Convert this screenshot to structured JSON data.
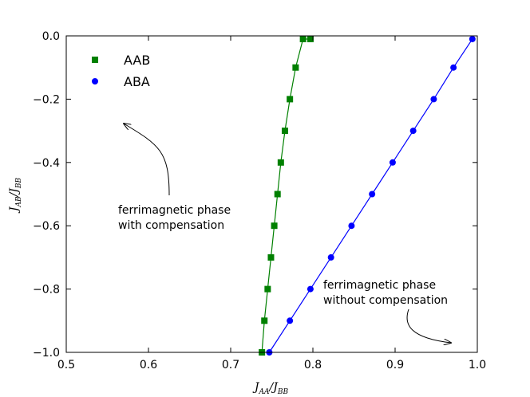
{
  "chart_data": {
    "type": "line",
    "xlabel": {
      "base": "J",
      "sub": "AA",
      "sep": "/",
      "base2": "J",
      "sub2": "BB"
    },
    "ylabel": {
      "base": "J",
      "sub": "AB",
      "sep": "/",
      "base2": "J",
      "sub2": "BB"
    },
    "xlim": [
      0.5,
      1.0
    ],
    "ylim": [
      -1.0,
      0.0
    ],
    "xticks": [
      0.5,
      0.6,
      0.7,
      0.8,
      0.9,
      1.0
    ],
    "xtick_labels": [
      "0.5",
      "0.6",
      "0.7",
      "0.8",
      "0.9",
      "1.0"
    ],
    "yticks": [
      0.0,
      -0.2,
      -0.4,
      -0.6,
      -0.8,
      -1.0
    ],
    "ytick_labels": [
      "0.0",
      "−0.2",
      "−0.4",
      "−0.6",
      "−0.8",
      "−1.0"
    ],
    "grid": false,
    "legend_position": "top-left",
    "series": [
      {
        "name": "AAB",
        "color": "#008000",
        "marker": "square",
        "x": [
          0.738,
          0.741,
          0.745,
          0.749,
          0.753,
          0.757,
          0.761,
          0.766,
          0.772,
          0.779,
          0.788,
          0.797
        ],
        "y": [
          -1.0,
          -0.9,
          -0.8,
          -0.7,
          -0.6,
          -0.5,
          -0.4,
          -0.3,
          -0.2,
          -0.1,
          -0.01,
          -0.01
        ]
      },
      {
        "name": "ABA",
        "color": "#0000ff",
        "marker": "circle",
        "x": [
          0.747,
          0.772,
          0.797,
          0.822,
          0.847,
          0.872,
          0.897,
          0.922,
          0.947,
          0.971,
          0.994
        ],
        "y": [
          -1.0,
          -0.9,
          -0.8,
          -0.7,
          -0.6,
          -0.5,
          -0.4,
          -0.3,
          -0.2,
          -0.1,
          -0.01
        ]
      }
    ],
    "annotations": [
      {
        "lines": [
          "ferrimagnetic phase",
          "with compensation"
        ]
      },
      {
        "lines": [
          "ferrimagnetic phase",
          "without compensation"
        ]
      }
    ]
  }
}
